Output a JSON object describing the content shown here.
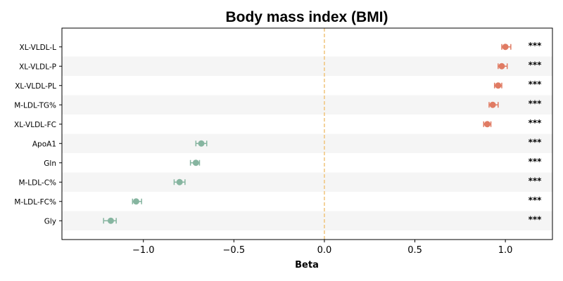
{
  "chart_data": {
    "type": "forest",
    "title": "Body mass index (BMI)",
    "xlabel": "Beta",
    "xlim": [
      -1.45,
      1.26
    ],
    "xticks": [
      -1.0,
      -0.5,
      0.0,
      0.5,
      1.0
    ],
    "xtick_labels": [
      "−1.0",
      "−0.5",
      "0.0",
      "0.5",
      "1.0"
    ],
    "reference_line": 0.0,
    "reference_line_color": "#f0c47a",
    "positive_color": "#e07b63",
    "negative_color": "#86b5a0",
    "stripe_color": "#f5f5f5",
    "grid": false,
    "rows": [
      {
        "label": "XL-VLDL-L",
        "beta": 1.0,
        "ci_low": 0.98,
        "ci_high": 1.03,
        "sig": "***"
      },
      {
        "label": "XL-VLDL-P",
        "beta": 0.98,
        "ci_low": 0.96,
        "ci_high": 1.01,
        "sig": "***"
      },
      {
        "label": "XL-VLDL-PL",
        "beta": 0.96,
        "ci_low": 0.94,
        "ci_high": 0.98,
        "sig": "***"
      },
      {
        "label": "M-LDL-TG%",
        "beta": 0.93,
        "ci_low": 0.91,
        "ci_high": 0.96,
        "sig": "***"
      },
      {
        "label": "XL-VLDL-FC",
        "beta": 0.9,
        "ci_low": 0.88,
        "ci_high": 0.92,
        "sig": "***"
      },
      {
        "label": "ApoA1",
        "beta": -0.68,
        "ci_low": -0.71,
        "ci_high": -0.65,
        "sig": "***"
      },
      {
        "label": "Gln",
        "beta": -0.71,
        "ci_low": -0.74,
        "ci_high": -0.69,
        "sig": "***"
      },
      {
        "label": "M-LDL-C%",
        "beta": -0.8,
        "ci_low": -0.83,
        "ci_high": -0.77,
        "sig": "***"
      },
      {
        "label": "M-LDL-FC%",
        "beta": -1.04,
        "ci_low": -1.06,
        "ci_high": -1.01,
        "sig": "***"
      },
      {
        "label": "Gly",
        "beta": -1.18,
        "ci_low": -1.22,
        "ci_high": -1.15,
        "sig": "***"
      }
    ]
  }
}
